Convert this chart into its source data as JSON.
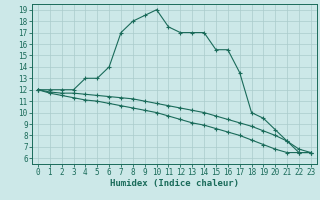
{
  "xlabel": "Humidex (Indice chaleur)",
  "bg_color": "#cce8e8",
  "grid_color": "#aacccc",
  "line_color": "#1a6b5a",
  "spine_color": "#1a6b5a",
  "xlim": [
    -0.5,
    23.5
  ],
  "ylim": [
    5.5,
    19.5
  ],
  "xticks": [
    0,
    1,
    2,
    3,
    4,
    5,
    6,
    7,
    8,
    9,
    10,
    11,
    12,
    13,
    14,
    15,
    16,
    17,
    18,
    19,
    20,
    21,
    22,
    23
  ],
  "yticks": [
    6,
    7,
    8,
    9,
    10,
    11,
    12,
    13,
    14,
    15,
    16,
    17,
    18,
    19
  ],
  "curve1_x": [
    0,
    1,
    2,
    3,
    4,
    5,
    6,
    7,
    8,
    9,
    10,
    11,
    12,
    13,
    14,
    15,
    16,
    17,
    18,
    19,
    20,
    21,
    22,
    23
  ],
  "curve1_y": [
    12,
    12,
    12,
    12,
    13,
    13,
    14,
    17,
    18,
    18.5,
    19,
    17.5,
    17,
    17,
    17,
    15.5,
    15.5,
    13.5,
    10,
    9.5,
    8.5,
    7.5,
    6.5,
    6.5
  ],
  "curve2_x": [
    0,
    1,
    2,
    3,
    4,
    5,
    6,
    7,
    8,
    9,
    10,
    11,
    12,
    13,
    14,
    15,
    16,
    17,
    18,
    19,
    20,
    21,
    22,
    23
  ],
  "curve2_y": [
    12,
    11.8,
    11.7,
    11.7,
    11.6,
    11.5,
    11.4,
    11.3,
    11.2,
    11.0,
    10.8,
    10.6,
    10.4,
    10.2,
    10.0,
    9.7,
    9.4,
    9.1,
    8.8,
    8.4,
    8.0,
    7.5,
    6.8,
    6.5
  ],
  "curve3_x": [
    0,
    1,
    2,
    3,
    4,
    5,
    6,
    7,
    8,
    9,
    10,
    11,
    12,
    13,
    14,
    15,
    16,
    17,
    18,
    19,
    20,
    21,
    22,
    23
  ],
  "curve3_y": [
    12,
    11.7,
    11.5,
    11.3,
    11.1,
    11.0,
    10.8,
    10.6,
    10.4,
    10.2,
    10.0,
    9.7,
    9.4,
    9.1,
    8.9,
    8.6,
    8.3,
    8.0,
    7.6,
    7.2,
    6.8,
    6.5,
    6.5,
    6.5
  ],
  "tick_fontsize": 5.5,
  "xlabel_fontsize": 6.5,
  "tick_color": "#1a6b5a",
  "lw": 0.8,
  "marker_size": 2.5
}
